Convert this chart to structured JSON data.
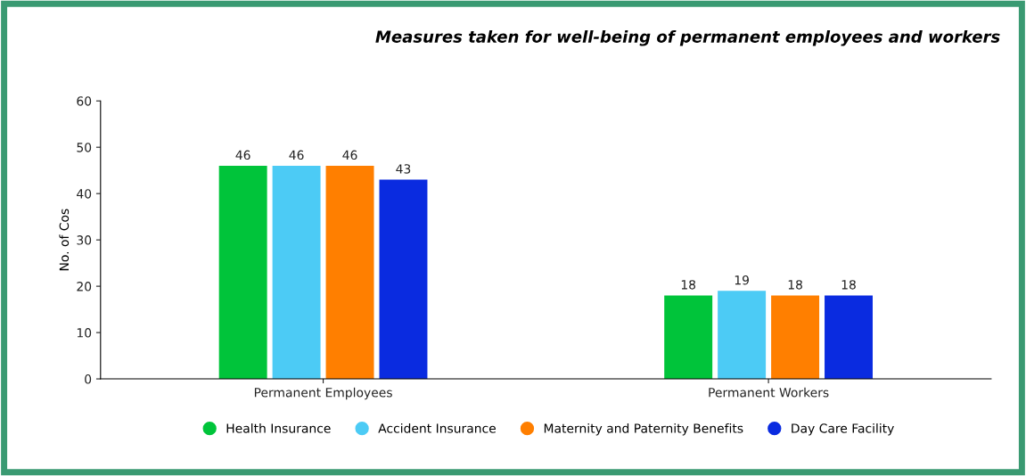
{
  "chart_data": {
    "type": "bar",
    "title": "Measures taken for well-being of permanent employees and workers",
    "ylabel": "No. of Cos",
    "categories": [
      "Permanent Employees",
      "Permanent Workers"
    ],
    "series": [
      {
        "name": "Health Insurance",
        "color": "#00c43a",
        "values": [
          46,
          18
        ]
      },
      {
        "name": "Accident Insurance",
        "color": "#4ccbf5",
        "values": [
          46,
          19
        ]
      },
      {
        "name": "Maternity and Paternity Benefits",
        "color": "#ff7f00",
        "values": [
          46,
          18
        ]
      },
      {
        "name": "Day Care Facility",
        "color": "#0a2be0",
        "values": [
          43,
          18
        ]
      }
    ],
    "ylim": [
      0,
      60
    ],
    "yticks": [
      0,
      10,
      20,
      30,
      40,
      50,
      60
    ],
    "data_labels": true,
    "grid": false,
    "legend": "bottom"
  }
}
